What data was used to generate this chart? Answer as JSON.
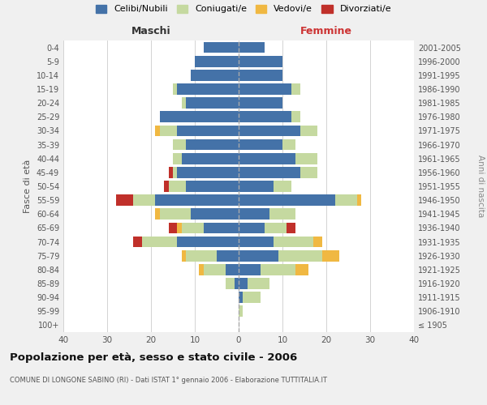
{
  "age_groups": [
    "100+",
    "95-99",
    "90-94",
    "85-89",
    "80-84",
    "75-79",
    "70-74",
    "65-69",
    "60-64",
    "55-59",
    "50-54",
    "45-49",
    "40-44",
    "35-39",
    "30-34",
    "25-29",
    "20-24",
    "15-19",
    "10-14",
    "5-9",
    "0-4"
  ],
  "birth_years": [
    "≤ 1905",
    "1906-1910",
    "1911-1915",
    "1916-1920",
    "1921-1925",
    "1926-1930",
    "1931-1935",
    "1936-1940",
    "1941-1945",
    "1946-1950",
    "1951-1955",
    "1956-1960",
    "1961-1965",
    "1966-1970",
    "1971-1975",
    "1976-1980",
    "1981-1985",
    "1986-1990",
    "1991-1995",
    "1996-2000",
    "2001-2005"
  ],
  "maschi": {
    "celibi": [
      0,
      0,
      0,
      1,
      3,
      5,
      14,
      8,
      11,
      19,
      12,
      14,
      13,
      12,
      14,
      18,
      12,
      14,
      11,
      10,
      8
    ],
    "coniugati": [
      0,
      0,
      0,
      2,
      5,
      7,
      8,
      5,
      7,
      5,
      4,
      1,
      2,
      3,
      4,
      0,
      1,
      1,
      0,
      0,
      0
    ],
    "vedovi": [
      0,
      0,
      0,
      0,
      1,
      1,
      0,
      1,
      1,
      0,
      0,
      0,
      0,
      0,
      1,
      0,
      0,
      0,
      0,
      0,
      0
    ],
    "divorziati": [
      0,
      0,
      0,
      0,
      0,
      0,
      2,
      2,
      0,
      4,
      1,
      1,
      0,
      0,
      0,
      0,
      0,
      0,
      0,
      0,
      0
    ]
  },
  "femmine": {
    "nubili": [
      0,
      0,
      1,
      2,
      5,
      9,
      8,
      6,
      7,
      22,
      8,
      14,
      13,
      10,
      14,
      12,
      10,
      12,
      10,
      10,
      6
    ],
    "coniugate": [
      0,
      1,
      4,
      5,
      8,
      10,
      9,
      5,
      6,
      5,
      4,
      4,
      5,
      3,
      4,
      2,
      0,
      2,
      0,
      0,
      0
    ],
    "vedove": [
      0,
      0,
      0,
      0,
      3,
      4,
      2,
      0,
      0,
      1,
      0,
      0,
      0,
      0,
      0,
      0,
      0,
      0,
      0,
      0,
      0
    ],
    "divorziate": [
      0,
      0,
      0,
      0,
      0,
      0,
      0,
      2,
      0,
      0,
      0,
      0,
      0,
      0,
      0,
      0,
      0,
      0,
      0,
      0,
      0
    ]
  },
  "colors": {
    "celibi_nubili": "#4472a8",
    "coniugati": "#c5d9a0",
    "vedovi": "#f0b842",
    "divorziati": "#c0302a"
  },
  "xlim": 40,
  "title": "Popolazione per età, sesso e stato civile - 2006",
  "subtitle": "COMUNE DI LONGONE SABINO (RI) - Dati ISTAT 1° gennaio 2006 - Elaborazione TUTTITALIA.IT",
  "ylabel_left": "Fasce di età",
  "ylabel_right": "Anni di nascita",
  "xlabel_maschi": "Maschi",
  "xlabel_femmine": "Femmine",
  "legend_labels": [
    "Celibi/Nubili",
    "Coniugati/e",
    "Vedovi/e",
    "Divorziati/e"
  ],
  "bg_color": "#f0f0f0",
  "plot_bg": "#ffffff"
}
